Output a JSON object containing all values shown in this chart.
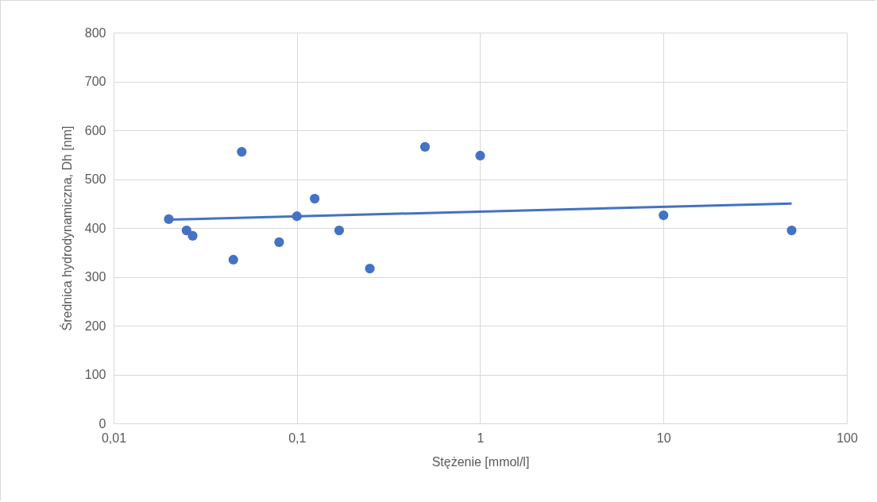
{
  "chart_data": {
    "type": "scatter",
    "xlabel": "Stężenie [mmol/l]",
    "ylabel": "Średnica hydrodynamiczna, Dh [nm]",
    "log": "x",
    "grid": true,
    "xlim": [
      0.01,
      100
    ],
    "xticks": [
      {
        "value": 0.01,
        "label": "0,01"
      },
      {
        "value": 0.1,
        "label": "0,1"
      },
      1,
      10,
      100
    ],
    "ylim": [
      0,
      800
    ],
    "yticks": [
      0,
      100,
      200,
      300,
      400,
      500,
      600,
      700,
      800
    ],
    "series": [
      {
        "marker": "circle",
        "color": "#4472c4",
        "x": [
          0.02,
          0.025,
          0.027,
          0.045,
          0.05,
          0.08,
          0.1,
          0.125,
          0.17,
          0.25,
          0.5,
          1,
          10,
          50
        ],
        "values": [
          418,
          395,
          384,
          335,
          556,
          371,
          424,
          460,
          395,
          317,
          566,
          548,
          426,
          395
        ]
      },
      {
        "type": "line",
        "marker": "none",
        "color": "#4472c4",
        "x": [
          0.02,
          50
        ],
        "values": [
          417,
          450
        ]
      }
    ]
  }
}
